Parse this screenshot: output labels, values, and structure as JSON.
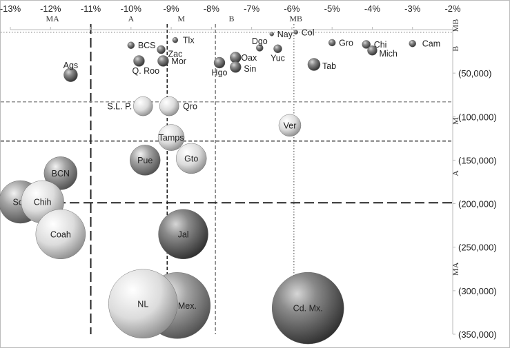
{
  "chart_data": {
    "type": "bubble",
    "x_axis": {
      "position": "top",
      "range": [
        -13,
        -2
      ],
      "ticks": [
        -13,
        -12,
        -11,
        -10,
        -9,
        -8,
        -7,
        -6,
        -5,
        -4,
        -3,
        -2
      ],
      "tick_labels": [
        "-13%",
        "-12%",
        "-11%",
        "-10%",
        "-9%",
        "-8%",
        "-7%",
        "-6%",
        "-5%",
        "-4%",
        "-3%",
        "-2%"
      ]
    },
    "y_axis": {
      "position": "right",
      "range": [
        0,
        350000
      ],
      "inverted": true,
      "ticks": [
        50000,
        100000,
        150000,
        200000,
        250000,
        300000,
        350000
      ],
      "tick_labels": [
        "(50,000)",
        "(100,000)",
        "(150,000)",
        "(200,000)",
        "(250,000)",
        "(300,000)",
        "(350,000)"
      ]
    },
    "x_zone_labels": [
      "MA",
      "A",
      "M",
      "B",
      "MB"
    ],
    "y_zone_labels": [
      "MB",
      "B",
      "M",
      "A",
      "MA"
    ],
    "reference_lines": {
      "vertical": [
        {
          "x": -11.0,
          "style": "long-dash",
          "color": "#222222"
        },
        {
          "x": -9.1,
          "style": "dash",
          "color": "#222222"
        },
        {
          "x": -7.9,
          "style": "dash",
          "color": "#888888"
        },
        {
          "x": -5.95,
          "style": "dot",
          "color": "#888888"
        }
      ],
      "horizontal": [
        {
          "y": 3000,
          "style": "dot",
          "color": "#999999"
        },
        {
          "y": 83000,
          "style": "dash",
          "color": "#888888"
        },
        {
          "y": 128000,
          "style": "dash",
          "color": "#222222"
        },
        {
          "y": 199000,
          "style": "long-dash",
          "color": "#222222"
        }
      ]
    },
    "points": [
      {
        "label": "Nay",
        "x": -6.5,
        "y": 5000,
        "size": 3,
        "shade": "dark"
      },
      {
        "label": "Col",
        "x": -5.9,
        "y": 3000,
        "size": 3,
        "shade": "dark"
      },
      {
        "label": "Tlx",
        "x": -8.9,
        "y": 12000,
        "size": 4,
        "shade": "dark"
      },
      {
        "label": "Dgo",
        "x": -6.8,
        "y": 21000,
        "size": 5,
        "shade": "dark"
      },
      {
        "label": "Gro",
        "x": -5.0,
        "y": 15000,
        "size": 5,
        "shade": "dark"
      },
      {
        "label": "Chi",
        "x": -4.15,
        "y": 17000,
        "size": 6,
        "shade": "dark"
      },
      {
        "label": "Cam",
        "x": -3.0,
        "y": 16000,
        "size": 5,
        "shade": "dark"
      },
      {
        "label": "BCS",
        "x": -10.0,
        "y": 18000,
        "size": 5,
        "shade": "dark"
      },
      {
        "label": "Zac",
        "x": -9.25,
        "y": 23000,
        "size": 6,
        "shade": "dark"
      },
      {
        "label": "Yuc",
        "x": -6.35,
        "y": 22000,
        "size": 6,
        "shade": "dark"
      },
      {
        "label": "Mich",
        "x": -4.0,
        "y": 24000,
        "size": 7,
        "shade": "dark"
      },
      {
        "label": "Oax",
        "x": -7.4,
        "y": 32000,
        "size": 8,
        "shade": "dark"
      },
      {
        "label": "Q. Roo",
        "x": -9.8,
        "y": 36000,
        "size": 8,
        "shade": "dark"
      },
      {
        "label": "Mor",
        "x": -9.2,
        "y": 36000,
        "size": 8,
        "shade": "dark"
      },
      {
        "label": "Hgo",
        "x": -7.8,
        "y": 38000,
        "size": 8,
        "shade": "dark"
      },
      {
        "label": "Sin",
        "x": -7.4,
        "y": 43000,
        "size": 8,
        "shade": "dark"
      },
      {
        "label": "Tab",
        "x": -5.45,
        "y": 40000,
        "size": 9,
        "shade": "dark"
      },
      {
        "label": "Ags",
        "x": -11.5,
        "y": 52000,
        "size": 10,
        "shade": "dark"
      },
      {
        "label": "S.L. P.",
        "x": -9.7,
        "y": 88000,
        "size": 14,
        "shade": "light"
      },
      {
        "label": "Qro",
        "x": -9.05,
        "y": 88000,
        "size": 14,
        "shade": "light"
      },
      {
        "label": "Ver",
        "x": -6.05,
        "y": 110000,
        "size": 16,
        "shade": "light"
      },
      {
        "label": "Tamps",
        "x": -9.0,
        "y": 124000,
        "size": 19,
        "shade": "light"
      },
      {
        "label": "Gto",
        "x": -8.5,
        "y": 148000,
        "size": 22,
        "shade": "light"
      },
      {
        "label": "Pue",
        "x": -9.65,
        "y": 150000,
        "size": 22,
        "shade": "mid"
      },
      {
        "label": "BCN",
        "x": -11.75,
        "y": 165000,
        "size": 24,
        "shade": "mid"
      },
      {
        "label": "Son",
        "x": -12.75,
        "y": 198000,
        "size": 31,
        "shade": "mid"
      },
      {
        "label": "Chih",
        "x": -12.2,
        "y": 198000,
        "size": 31,
        "shade": "light"
      },
      {
        "label": "Coah",
        "x": -11.75,
        "y": 235000,
        "size": 36,
        "shade": "light"
      },
      {
        "label": "Jal",
        "x": -8.7,
        "y": 235000,
        "size": 36,
        "shade": "dark"
      },
      {
        "label": "Edo. Mex.",
        "x": -8.85,
        "y": 317000,
        "size": 48,
        "shade": "mid"
      },
      {
        "label": "NL",
        "x": -9.7,
        "y": 315000,
        "size": 50,
        "shade": "light"
      },
      {
        "label": "Cd. Mx.",
        "x": -5.6,
        "y": 320000,
        "size": 52,
        "shade": "dark"
      }
    ]
  },
  "colors": {
    "frame": "#bbbbbb",
    "axis_line": "#bbbbbb",
    "text": "#222222"
  }
}
